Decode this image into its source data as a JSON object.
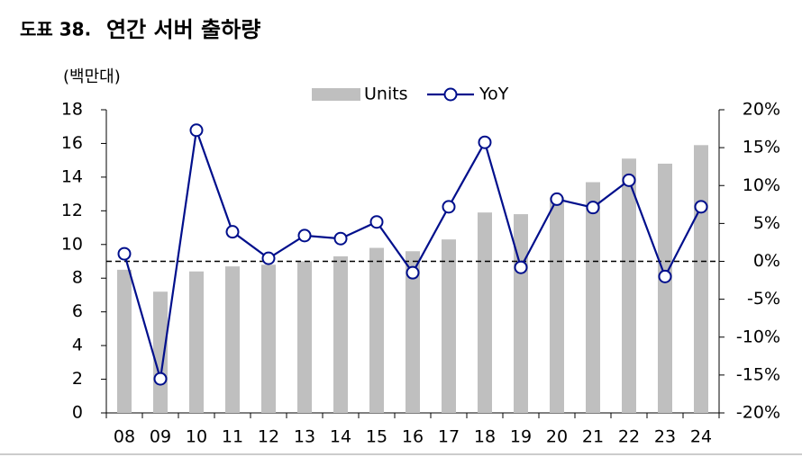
{
  "chart_data": {
    "type": "bar-line",
    "title_prefix": "도표 38.",
    "title": "연간 서버 출하량",
    "y_label": "(백만대)",
    "categories": [
      "08",
      "09",
      "10",
      "11",
      "12",
      "13",
      "14",
      "15",
      "16",
      "17",
      "18",
      "19",
      "20",
      "21",
      "22",
      "23",
      "24"
    ],
    "series": [
      {
        "name": "Units",
        "type": "bar",
        "color": "#bfbfbf",
        "values": [
          8.5,
          7.2,
          8.4,
          8.7,
          8.8,
          9.0,
          9.3,
          9.8,
          9.6,
          10.3,
          11.9,
          11.8,
          12.8,
          13.7,
          15.1,
          14.8,
          15.9
        ]
      },
      {
        "name": "YoY",
        "type": "line",
        "axis": "y2",
        "color": "#000f8c",
        "values": [
          1.0,
          -15.5,
          17.3,
          3.9,
          0.4,
          3.4,
          3.0,
          5.2,
          -1.5,
          7.2,
          15.7,
          -0.8,
          8.2,
          7.1,
          10.7,
          -2.0,
          7.2
        ]
      }
    ],
    "ylim": [
      0,
      18
    ],
    "yticks": [
      0,
      2,
      4,
      6,
      8,
      10,
      12,
      14,
      16,
      18
    ],
    "y2lim": [
      -20,
      20
    ],
    "y2ticks": [
      {
        "value": -20,
        "label": "-20%"
      },
      {
        "value": -15,
        "label": "-15%"
      },
      {
        "value": -10,
        "label": "-10%"
      },
      {
        "value": -5,
        "label": "-5%"
      },
      {
        "value": 0,
        "label": "0%"
      },
      {
        "value": 5,
        "label": "5%"
      },
      {
        "value": 10,
        "label": "10%"
      },
      {
        "value": 15,
        "label": "15%"
      },
      {
        "value": 20,
        "label": "20%"
      }
    ],
    "y2_reference_tick": 4,
    "legend": "top"
  }
}
